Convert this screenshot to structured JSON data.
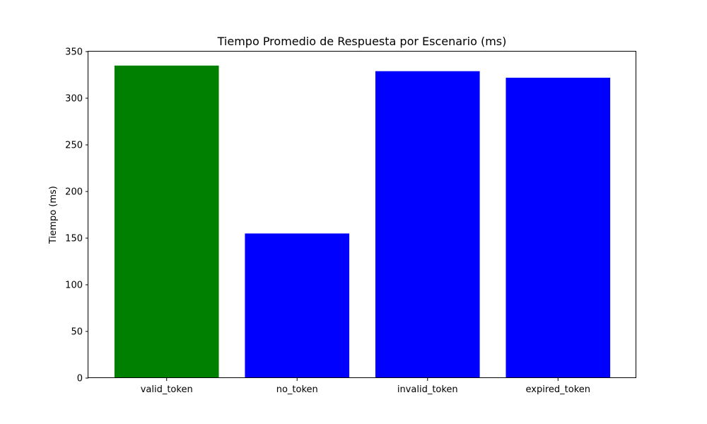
{
  "chart_data": {
    "type": "bar",
    "title": "Tiempo Promedio de Respuesta por Escenario (ms)",
    "xlabel": "",
    "ylabel": "Tiempo (ms)",
    "categories": [
      "valid_token",
      "no_token",
      "invalid_token",
      "expired_token"
    ],
    "values": [
      335,
      155,
      329,
      322
    ],
    "colors": [
      "#008000",
      "#0000ff",
      "#0000ff",
      "#0000ff"
    ],
    "ylim": [
      0,
      350
    ],
    "yticks": [
      0,
      50,
      100,
      150,
      200,
      250,
      300,
      350
    ],
    "grid": false,
    "legend": "none"
  }
}
